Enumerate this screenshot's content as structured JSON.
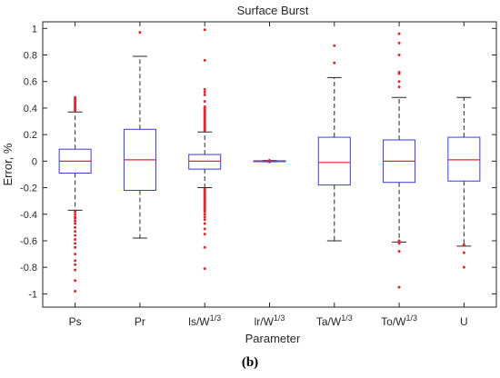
{
  "caption": "(b)",
  "chart_data": {
    "type": "box",
    "title": "Surface Burst",
    "xlabel": "Parameter",
    "ylabel": "Error, %",
    "ylim": [
      -1.1,
      1.05
    ],
    "yticks": [
      -1,
      -0.8,
      -0.6,
      -0.4,
      -0.2,
      0,
      0.2,
      0.4,
      0.6,
      0.8,
      1
    ],
    "ytick_labels": [
      "-1",
      "-0.8",
      "-0.6",
      "-0.4",
      "-0.2",
      "0",
      "0.2",
      "0.4",
      "0.6",
      "0.8",
      "1"
    ],
    "grid": false,
    "categories": [
      {
        "label": "Ps",
        "sup": ""
      },
      {
        "label": "Pr",
        "sup": ""
      },
      {
        "label": "ls/W",
        "sup": "1/3"
      },
      {
        "label": "lr/W",
        "sup": "1/3"
      },
      {
        "label": "Ta/W",
        "sup": "1/3"
      },
      {
        "label": "To/W",
        "sup": "1/3"
      },
      {
        "label": "U",
        "sup": ""
      }
    ],
    "boxes": [
      {
        "whisker_low": -0.37,
        "q1": -0.09,
        "median": 0.0,
        "q3": 0.09,
        "whisker_high": 0.37,
        "outliers": [
          0.48,
          0.47,
          0.46,
          0.45,
          0.44,
          0.43,
          0.42,
          0.41,
          0.4,
          0.39,
          0.38,
          -0.38,
          -0.4,
          -0.42,
          -0.43,
          -0.45,
          -0.47,
          -0.5,
          -0.53,
          -0.56,
          -0.59,
          -0.62,
          -0.65,
          -0.7,
          -0.75,
          -0.78,
          -0.82,
          -0.9,
          -0.98
        ]
      },
      {
        "whisker_low": -0.58,
        "q1": -0.22,
        "median": 0.01,
        "q3": 0.24,
        "whisker_high": 0.79,
        "outliers": [
          0.97
        ]
      },
      {
        "whisker_low": -0.2,
        "q1": -0.06,
        "median": 0.0,
        "q3": 0.05,
        "whisker_high": 0.22,
        "outliers": [
          0.99,
          0.76,
          0.54,
          0.52,
          0.5,
          0.45,
          0.41,
          0.4,
          0.39,
          0.38,
          0.37,
          0.36,
          0.35,
          0.34,
          0.33,
          0.32,
          0.31,
          0.3,
          0.29,
          0.28,
          0.27,
          0.26,
          0.25,
          0.24,
          0.23,
          -0.21,
          -0.22,
          -0.23,
          -0.24,
          -0.25,
          -0.26,
          -0.27,
          -0.28,
          -0.29,
          -0.3,
          -0.31,
          -0.32,
          -0.33,
          -0.34,
          -0.35,
          -0.36,
          -0.37,
          -0.38,
          -0.4,
          -0.42,
          -0.44,
          -0.47,
          -0.51,
          -0.55,
          -0.65,
          -0.81
        ]
      },
      {
        "whisker_low": -0.005,
        "q1": -0.003,
        "median": 0.0,
        "q3": 0.003,
        "whisker_high": 0.005,
        "outliers": [
          0.006,
          -0.006
        ]
      },
      {
        "whisker_low": -0.6,
        "q1": -0.18,
        "median": -0.01,
        "q3": 0.18,
        "whisker_high": 0.63,
        "outliers": [
          0.87,
          0.74
        ]
      },
      {
        "whisker_low": -0.61,
        "q1": -0.16,
        "median": 0.0,
        "q3": 0.16,
        "whisker_high": 0.48,
        "outliers": [
          0.96,
          0.89,
          0.8,
          0.67,
          0.66,
          0.6,
          0.56,
          -0.6,
          -0.62,
          -0.68,
          -0.95
        ]
      },
      {
        "whisker_low": -0.64,
        "q1": -0.15,
        "median": 0.01,
        "q3": 0.18,
        "whisker_high": 0.48,
        "outliers": [
          -0.63,
          -0.69,
          -0.8
        ]
      }
    ],
    "colors": {
      "box": "#3b3bd6",
      "median": "#e0282e",
      "whisker": "#262626",
      "outlier": "#e0282e",
      "axes": "#262626"
    }
  }
}
